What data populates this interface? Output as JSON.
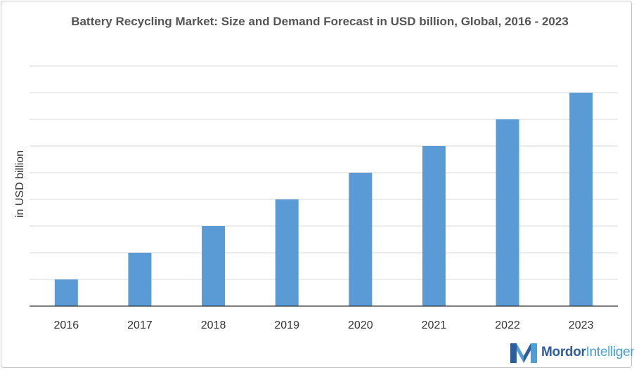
{
  "chart_data": {
    "type": "bar",
    "title": "Battery Recycling Market: Size and Demand Forecast in USD billion, Global,  2016 - 2023",
    "ylabel": "in USD billion",
    "xlabel": "",
    "categories": [
      "2016",
      "2017",
      "2018",
      "2019",
      "2020",
      "2021",
      "2022",
      "2023"
    ],
    "values": [
      1,
      2,
      3,
      4,
      5,
      6,
      7,
      8
    ],
    "ylim": [
      0,
      9
    ],
    "grid": true,
    "bar_color": "#5b9bd5",
    "show_y_tick_labels": false
  },
  "logo": {
    "icon": "mordor-intelligence-logo-icon",
    "text_bold": "Mordor",
    "text_light": "Intelligence",
    "colors": {
      "dark": "#2f5d9c",
      "light": "#4e9fd6"
    }
  }
}
